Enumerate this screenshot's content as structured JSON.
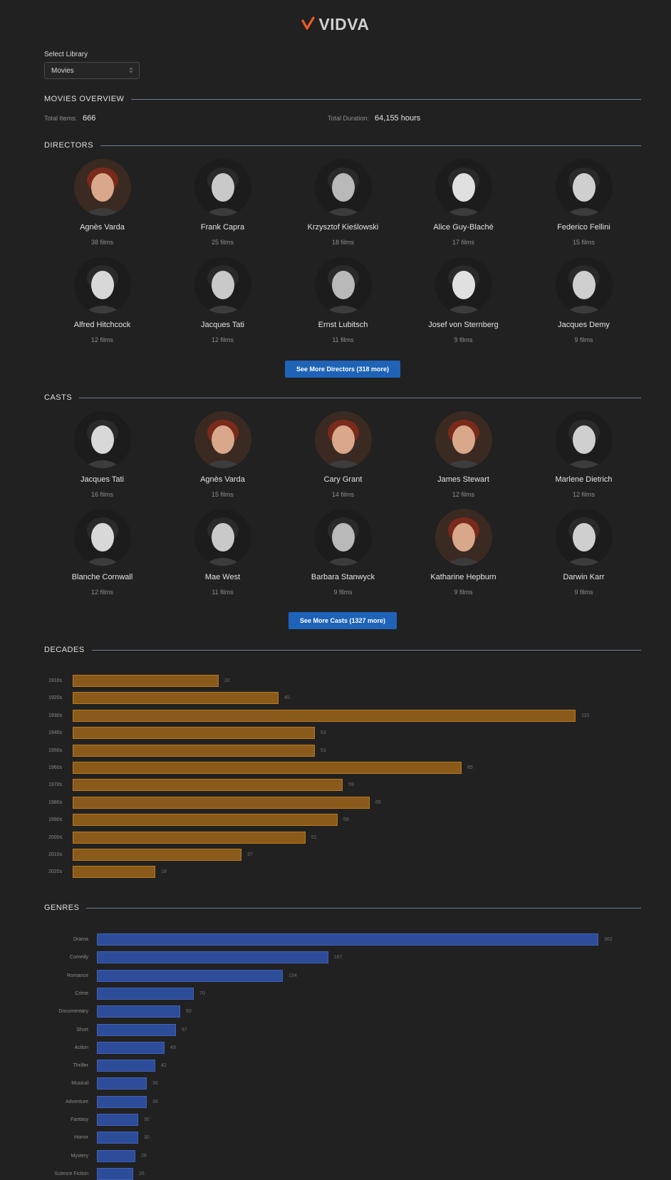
{
  "app": {
    "title": "VIDVA",
    "logo_icon": "checkmark-logo-icon",
    "accent": "#f05a22"
  },
  "library": {
    "label": "Select Library",
    "selected": "Movies",
    "icon": "chevron-updown-icon"
  },
  "overview": {
    "heading": "MOVIES OVERVIEW",
    "total_items_label": "Total Items:",
    "total_items": "666",
    "total_duration_label": "Total Duration:",
    "total_duration": "64,155 hours"
  },
  "directors": {
    "heading": "DIRECTORS",
    "items": [
      {
        "name": "Agnès Varda",
        "count": "38 films"
      },
      {
        "name": "Frank Capra",
        "count": "25 films"
      },
      {
        "name": "Krzysztof Kieślowski",
        "count": "18 films"
      },
      {
        "name": "Alice Guy-Blaché",
        "count": "17 films"
      },
      {
        "name": "Federico Fellini",
        "count": "15 films"
      },
      {
        "name": "Alfred Hitchcock",
        "count": "12 films"
      },
      {
        "name": "Jacques Tati",
        "count": "12 films"
      },
      {
        "name": "Ernst Lubitsch",
        "count": "11 films"
      },
      {
        "name": "Josef von Sternberg",
        "count": "9 films"
      },
      {
        "name": "Jacques Demy",
        "count": "9 films"
      }
    ],
    "more_button": "See More Directors (318 more)"
  },
  "casts": {
    "heading": "CASTS",
    "items": [
      {
        "name": "Jacques Tati",
        "count": "16 films"
      },
      {
        "name": "Agnès Varda",
        "count": "15 films"
      },
      {
        "name": "Cary Grant",
        "count": "14 films"
      },
      {
        "name": "James Stewart",
        "count": "12 films"
      },
      {
        "name": "Marlene Dietrich",
        "count": "12 films"
      },
      {
        "name": "Blanche Cornwall",
        "count": "12 films"
      },
      {
        "name": "Mae West",
        "count": "11 films"
      },
      {
        "name": "Barbara Stanwyck",
        "count": "9 films"
      },
      {
        "name": "Katharine Hepburn",
        "count": "9 films"
      },
      {
        "name": "Darwin Karr",
        "count": "9 films"
      }
    ],
    "more_button": "See More Casts (1327 more)"
  },
  "decades": {
    "heading": "DECADES",
    "bar_color": "#8a5a1b",
    "chart_data": {
      "type": "bar",
      "orientation": "horizontal",
      "categories": [
        "1910s",
        "1920s",
        "1930s",
        "1940s",
        "1950s",
        "1960s",
        "1970s",
        "1980s",
        "1990s",
        "2000s",
        "2010s",
        "2020s"
      ],
      "values": [
        32,
        45,
        110,
        53,
        53,
        85,
        59,
        65,
        58,
        51,
        37,
        18
      ],
      "xlim": [
        0,
        110
      ]
    }
  },
  "genres": {
    "heading": "GENRES",
    "bar_color": "#2d4c9a",
    "chart_data": {
      "type": "bar",
      "orientation": "horizontal",
      "categories": [
        "Drama",
        "Comedy",
        "Romance",
        "Crime",
        "Documentary",
        "Short",
        "Action",
        "Thriller",
        "Musical",
        "Adventure",
        "Fantasy",
        "Horror",
        "Mystery",
        "Science Fiction"
      ],
      "values": [
        362,
        167,
        134,
        70,
        60,
        57,
        49,
        42,
        36,
        36,
        30,
        30,
        28,
        26
      ],
      "xlim": [
        0,
        362
      ]
    }
  }
}
